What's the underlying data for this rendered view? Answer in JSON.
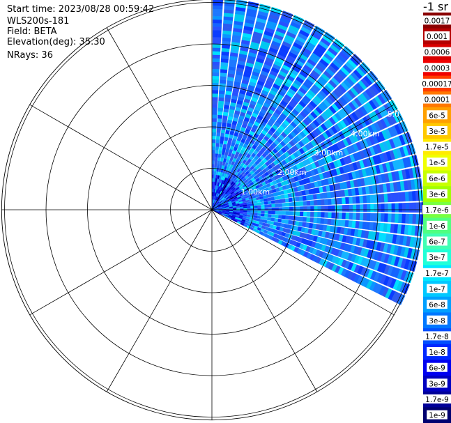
{
  "header": {
    "start_time": "Start time: 2023/08/28 00:59:42",
    "instrument": "WLS200s-181",
    "field": "Field: BETA",
    "elevation": "Elevation(deg): 35.30",
    "nrays": "NRays: 36"
  },
  "colorbar": {
    "title": "-1 sr",
    "labels": [
      "0.0017",
      "0.001",
      "0.0006",
      "0.0003",
      "0.00017",
      "0.0001",
      "6e-5",
      "3e-5",
      "1.7e-5",
      "1e-5",
      "6e-6",
      "3e-6",
      "1.7e-6",
      "1e-6",
      "6e-7",
      "3e-7",
      "1.7e-7",
      "1e-7",
      "6e-8",
      "3e-8",
      "1.7e-8",
      "1e-8",
      "6e-9",
      "3e-9",
      "1.7e-9",
      "1e-9"
    ],
    "colors": [
      "#8b0000",
      "#b40000",
      "#d80000",
      "#f00000",
      "#ff3c00",
      "#ff7800",
      "#ffa000",
      "#ffc800",
      "#ffeb00",
      "#f0ff00",
      "#c8ff00",
      "#a0ff00",
      "#78ff40",
      "#50ff80",
      "#40ffb4",
      "#20ffd8",
      "#00e8ff",
      "#00c8ff",
      "#00a0ff",
      "#0078ff",
      "#0050ff",
      "#0028ff",
      "#0000f0",
      "#0000c0",
      "#000098",
      "#000070"
    ]
  },
  "chart_data": {
    "type": "polar_ppi",
    "field": "BETA",
    "units": "sr-1",
    "elevation_deg": 35.3,
    "n_rays": 36,
    "azimuth_start_deg": 0,
    "azimuth_end_deg": 117,
    "max_range_km": 5.1,
    "range_rings_km": [
      1,
      2,
      3,
      4,
      5
    ],
    "range_ring_labels": [
      "1.00km",
      "2.00km",
      "3.00km",
      "4.00km",
      "5.0"
    ],
    "spokes_deg": [
      0,
      30,
      60,
      90,
      120,
      150,
      180,
      210,
      240,
      270,
      300,
      330
    ],
    "typical_value_range": [
      1e-08,
      6e-08
    ],
    "colorscale": "log"
  }
}
